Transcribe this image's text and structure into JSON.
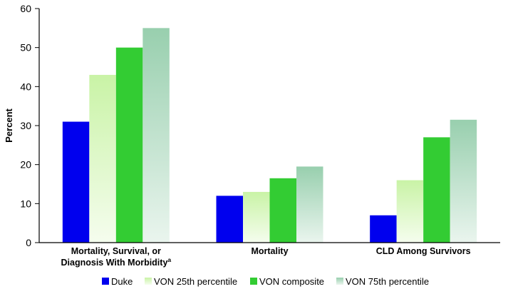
{
  "chart_data": {
    "type": "bar",
    "ylabel": "Percent",
    "xlabel": "",
    "ylim": [
      0,
      60
    ],
    "yticks": [
      0,
      10,
      20,
      30,
      40,
      50,
      60
    ],
    "grid": false,
    "legend_position": "bottom",
    "categories": [
      [
        "Mortality, Survival, or",
        "Diagnosis With Morbidity",
        "a"
      ],
      [
        "Mortality"
      ],
      [
        "CLD Among Survivors"
      ]
    ],
    "series": [
      {
        "name": "Duke",
        "values": [
          31,
          12,
          7
        ],
        "color": "#0000ee"
      },
      {
        "name": "VON 25th percentile",
        "values": [
          43,
          13,
          16
        ],
        "color": "#d3f5b3"
      },
      {
        "name": "VON composite",
        "values": [
          50,
          16.5,
          27
        ],
        "color": "#33cc33"
      },
      {
        "name": "VON 75th percentile",
        "values": [
          55,
          19.5,
          31.5
        ],
        "color": "#9fd0b2"
      }
    ]
  }
}
